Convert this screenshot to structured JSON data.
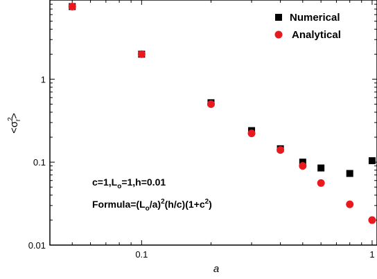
{
  "chart_data": {
    "type": "scatter",
    "xscale": "log",
    "yscale": "log",
    "xlim": [
      0.04,
      1.05
    ],
    "ylim": [
      0.01,
      9.0
    ],
    "xlabel": "a",
    "ylabel": "<σ²ᵣ>",
    "xticks": [
      {
        "value": 0.1,
        "label": "0.1"
      },
      {
        "value": 1,
        "label": "1"
      }
    ],
    "yticks": [
      {
        "value": 0.01,
        "label": "0.01"
      },
      {
        "value": 0.1,
        "label": "0.1"
      },
      {
        "value": 1,
        "label": "1"
      }
    ],
    "legend_position": "top-right",
    "series": [
      {
        "name": "Numerical",
        "marker": "square",
        "color": "#000000",
        "points": [
          [
            0.05,
            7.5
          ],
          [
            0.1,
            2.0
          ],
          [
            0.2,
            0.52
          ],
          [
            0.3,
            0.24
          ],
          [
            0.4,
            0.145
          ],
          [
            0.5,
            0.1
          ],
          [
            0.6,
            0.085
          ],
          [
            0.8,
            0.073
          ],
          [
            1.0,
            0.104
          ]
        ]
      },
      {
        "name": "Analytical",
        "marker": "circle",
        "color": "#e8191f",
        "points": [
          [
            0.05,
            7.5
          ],
          [
            0.1,
            2.0
          ],
          [
            0.2,
            0.5
          ],
          [
            0.3,
            0.222
          ],
          [
            0.4,
            0.14
          ],
          [
            0.5,
            0.09
          ],
          [
            0.6,
            0.056
          ],
          [
            0.8,
            0.031
          ],
          [
            1.0,
            0.02
          ]
        ]
      }
    ],
    "annotations": {
      "params": {
        "p1": "c=1,L",
        "p1sub": "o",
        "p2": "=1,h=0.01"
      },
      "formula": {
        "f1": "Formula=(L",
        "f1sub": "o",
        "f2": "/a)",
        "f2sup": "2",
        "f3": "(h/c)(1+c",
        "f3sup": "2",
        "f4": ")"
      }
    }
  }
}
